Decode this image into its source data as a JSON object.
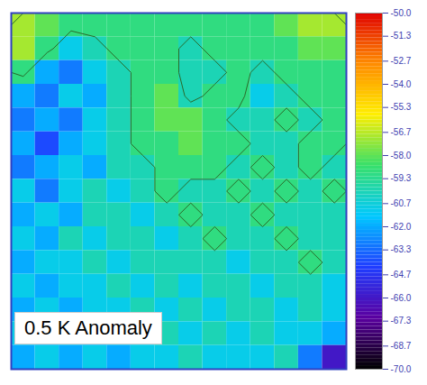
{
  "chart_data": {
    "type": "heatmap",
    "annotation": "0.5 K Anomaly",
    "tick_labels": false,
    "cells": [
      [
        -57,
        -58,
        -59,
        -59,
        -59,
        -59,
        -59,
        -59,
        -59,
        -59,
        -59,
        -58,
        -57,
        -57
      ],
      [
        -57,
        -59,
        -61,
        -60,
        -59,
        -59,
        -59,
        -60,
        -59,
        -59,
        -59,
        -59,
        -58,
        -58
      ],
      [
        -59,
        -62,
        -63,
        -61,
        -60,
        -59,
        -59,
        -60,
        -60,
        -59,
        -60,
        -59,
        -59,
        -59
      ],
      [
        -62,
        -63,
        -61,
        -62,
        -60,
        -59,
        -58,
        -60,
        -59,
        -59,
        -61,
        -60,
        -59,
        -59
      ],
      [
        -63,
        -62,
        -63,
        -61,
        -60,
        -59,
        -58,
        -58,
        -59,
        -60,
        -60,
        -59,
        -60,
        -59
      ],
      [
        -62,
        -64,
        -62,
        -61,
        -60,
        -59,
        -59,
        -58,
        -59,
        -59,
        -60,
        -60,
        -59,
        -59
      ],
      [
        -63,
        -62,
        -61,
        -62,
        -60,
        -60,
        -59,
        -59,
        -59,
        -60,
        -59,
        -60,
        -59,
        -60
      ],
      [
        -61,
        -63,
        -61,
        -60,
        -61,
        -60,
        -59,
        -60,
        -60,
        -59,
        -60,
        -59,
        -60,
        -59
      ],
      [
        -62,
        -61,
        -62,
        -60,
        -60,
        -61,
        -60,
        -59,
        -60,
        -60,
        -59,
        -60,
        -60,
        -60
      ],
      [
        -61,
        -62,
        -60,
        -61,
        -60,
        -60,
        -61,
        -60,
        -59,
        -60,
        -60,
        -59,
        -60,
        -60
      ],
      [
        -62,
        -61,
        -61,
        -60,
        -61,
        -60,
        -60,
        -60,
        -60,
        -61,
        -60,
        -60,
        -59,
        -60
      ],
      [
        -61,
        -62,
        -61,
        -61,
        -60,
        -61,
        -60,
        -61,
        -60,
        -60,
        -61,
        -60,
        -60,
        -61
      ],
      [
        -62,
        -61,
        -62,
        -61,
        -61,
        -60,
        -61,
        -60,
        -61,
        -60,
        -60,
        -61,
        -60,
        -61
      ],
      [
        -61,
        -62,
        -61,
        -62,
        -61,
        -61,
        -60,
        -61,
        -60,
        -61,
        -60,
        -61,
        -61,
        -62
      ],
      [
        -62,
        -61,
        -62,
        -61,
        -62,
        -61,
        -61,
        -60,
        -61,
        -61,
        -61,
        -60,
        -63,
        -66
      ]
    ],
    "contour_levels": [
      -59.5
    ],
    "colorbar_lim": [
      -70,
      -50
    ],
    "colorbar_ticks": [
      {
        "value": -50,
        "label": "-50.0"
      },
      -51.3,
      -52.7,
      {
        "value": -54,
        "label": "-54.0"
      },
      -55.3,
      -56.7,
      {
        "value": -58,
        "label": "-58.0"
      },
      -59.3,
      -60.7,
      {
        "value": -62,
        "label": "-62.0"
      },
      -63.3,
      -64.7,
      {
        "value": -66,
        "label": "-66.0"
      },
      -67.3,
      -68.7,
      {
        "value": -70,
        "label": "-70.0"
      }
    ]
  }
}
